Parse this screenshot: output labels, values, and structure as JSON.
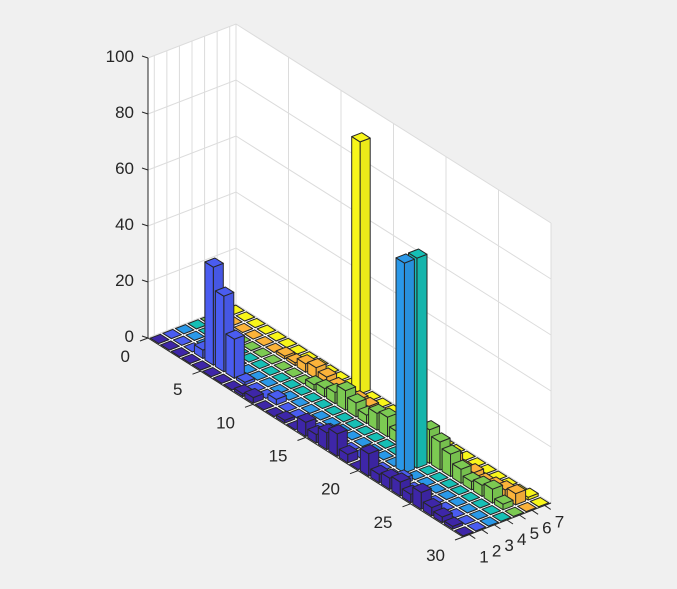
{
  "figure": {
    "background": "#f0f0f0",
    "axes_background": "#ffffff",
    "grid_color": "#dcdcdc"
  },
  "chart_data": {
    "type": "bar3",
    "title": "",
    "xlabel": "",
    "ylabel": "",
    "zlabel": "",
    "x_ticks": [
      "1",
      "2",
      "3",
      "4",
      "5",
      "6",
      "7"
    ],
    "y_ticks": [
      "0",
      "5",
      "10",
      "15",
      "20",
      "25",
      "30"
    ],
    "z_ticks": [
      "0",
      "20",
      "40",
      "60",
      "80",
      "100"
    ],
    "xlim": [
      0.5,
      7.5
    ],
    "ylim": [
      0,
      30
    ],
    "zlim": [
      0,
      100
    ],
    "grid": true,
    "colormap": "parula",
    "series_colors": [
      "#3e26a8",
      "#4a5cf0",
      "#2a98e8",
      "#16bfb5",
      "#7cca52",
      "#fbb33a",
      "#f8f61a"
    ],
    "rows": 30,
    "columns": 7,
    "series": [
      {
        "name": "1",
        "values": [
          0,
          0,
          0,
          0,
          0,
          0,
          0,
          0,
          1,
          2,
          0,
          0,
          1,
          0,
          5,
          3,
          6,
          8,
          3,
          0,
          8,
          3,
          4,
          5,
          3,
          6,
          3,
          2,
          1,
          0
        ]
      },
      {
        "name": "2",
        "values": [
          0,
          0,
          0,
          3,
          35,
          27,
          14,
          1,
          0,
          0,
          2,
          0,
          0,
          0,
          0,
          2,
          0,
          0,
          0,
          0,
          0,
          0,
          2,
          0,
          0,
          0,
          0,
          0,
          0,
          0
        ]
      },
      {
        "name": "3",
        "values": [
          0,
          0,
          0,
          0,
          0,
          0,
          0,
          0,
          0,
          0,
          0,
          0,
          0,
          0,
          0,
          0,
          0,
          0,
          0,
          0,
          0,
          75,
          0,
          0,
          0,
          0,
          0,
          0,
          0,
          0
        ]
      },
      {
        "name": "4",
        "values": [
          0,
          0,
          0,
          0,
          0,
          0,
          0,
          0,
          0,
          0,
          0,
          0,
          0,
          0,
          0,
          0,
          0,
          0,
          0,
          0,
          0,
          75,
          0,
          0,
          0,
          0,
          0,
          0,
          0,
          0
        ]
      },
      {
        "name": "5",
        "values": [
          0,
          0,
          0,
          0,
          0,
          0,
          0,
          0,
          0,
          0,
          2,
          3,
          4,
          7,
          5,
          3,
          6,
          7,
          4,
          3,
          3,
          12,
          10,
          8,
          5,
          3,
          4,
          5,
          2,
          0
        ]
      },
      {
        "name": "6",
        "values": [
          0,
          0,
          0,
          0,
          0,
          0,
          1,
          1,
          3,
          4,
          3,
          2,
          1,
          2,
          2,
          1,
          2,
          1,
          1,
          1,
          1,
          2,
          3,
          1,
          2,
          1,
          2,
          3,
          4,
          0
        ]
      },
      {
        "name": "7",
        "values": [
          0,
          0,
          0,
          0,
          0,
          0,
          0,
          0,
          0,
          0,
          0,
          0,
          90,
          0,
          0,
          0,
          0,
          0,
          0,
          0,
          0,
          0,
          0,
          0,
          0,
          0,
          0,
          0,
          1,
          0
        ]
      }
    ]
  }
}
